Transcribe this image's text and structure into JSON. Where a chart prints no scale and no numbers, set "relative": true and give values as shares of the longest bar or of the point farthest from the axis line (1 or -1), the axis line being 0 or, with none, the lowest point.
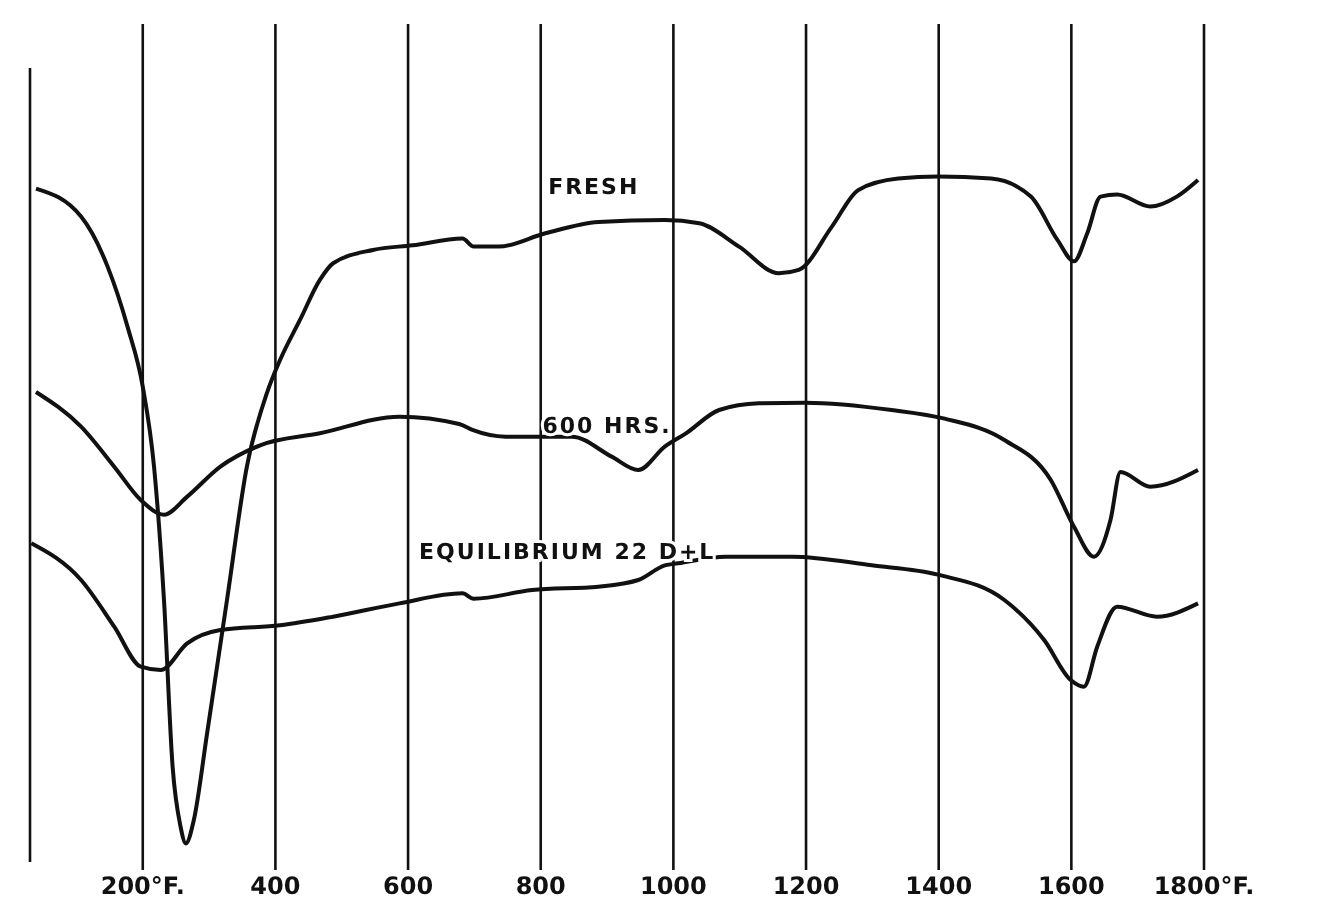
{
  "chart_data": {
    "type": "line",
    "relative": true,
    "grid": "x",
    "tick_labels": "x",
    "marker": "none",
    "line_style": "solid",
    "xlim": [
      30,
      1800
    ],
    "xticks": [
      {
        "value": 200,
        "label": "200°F."
      },
      400,
      600,
      800,
      1000,
      1200,
      1400,
      1600,
      {
        "value": 1800,
        "label": "1800°F."
      }
    ],
    "series": [
      {
        "name": "FRESH",
        "color": "#111111",
        "x": [
          39,
          107,
          147,
          177,
          200,
          217,
          232,
          245,
          257,
          265,
          277,
          297,
          327,
          357,
          387,
          407,
          437,
          467,
          487,
          547,
          607,
          682,
          699,
          737,
          807,
          887,
          987,
          1039,
          1099,
          1159,
          1189,
          1239,
          1279,
          1339,
          1399,
          1479,
          1539,
          1579,
          1604,
          1624,
          1644,
          1669,
          1719,
          1759,
          1791
        ],
        "values": [
          0.982,
          0.94,
          0.865,
          0.775,
          0.685,
          0.565,
          0.365,
          0.115,
          0.025,
          0,
          0.035,
          0.165,
          0.365,
          0.565,
          0.675,
          0.725,
          0.785,
          0.845,
          0.87,
          0.89,
          0.897,
          0.907,
          0.895,
          0.895,
          0.915,
          0.932,
          0.935,
          0.93,
          0.895,
          0.855,
          0.86,
          0.925,
          0.98,
          0.997,
          1,
          0.997,
          0.97,
          0.905,
          0.873,
          0.915,
          0.97,
          0.973,
          0.955,
          0.97,
          0.995
        ]
      },
      {
        "name": "600 HRS.",
        "color": "#111111",
        "x": [
          39,
          107,
          157,
          197,
          232,
          267,
          317,
          377,
          467,
          587,
          677,
          697,
          747,
          847,
          907,
          947,
          987,
          1019,
          1069,
          1129,
          1199,
          1329,
          1409,
          1499,
          1569,
          1604,
          1634,
          1659,
          1674,
          1719,
          1791
        ],
        "values": [
          0.677,
          0.625,
          0.565,
          0.515,
          0.493,
          0.52,
          0.565,
          0.597,
          0.615,
          0.64,
          0.629,
          0.62,
          0.61,
          0.61,
          0.58,
          0.56,
          0.595,
          0.615,
          0.65,
          0.66,
          0.661,
          0.65,
          0.637,
          0.605,
          0.545,
          0.475,
          0.43,
          0.485,
          0.557,
          0.535,
          0.56
        ]
      },
      {
        "name": "EQUILIBRIUM  22 D+L",
        "color": "#111111",
        "x": [
          32,
          107,
          157,
          197,
          227,
          267,
          317,
          407,
          487,
          587,
          682,
          699,
          787,
          887,
          947,
          987,
          1007,
          1079,
          1179,
          1299,
          1399,
          1499,
          1559,
          1599,
          1619,
          1639,
          1669,
          1729,
          1791
        ],
        "values": [
          0.45,
          0.395,
          0.325,
          0.265,
          0.26,
          0.3,
          0.32,
          0.327,
          0.34,
          0.36,
          0.375,
          0.367,
          0.38,
          0.385,
          0.395,
          0.417,
          0.42,
          0.43,
          0.43,
          0.417,
          0.403,
          0.365,
          0.305,
          0.245,
          0.235,
          0.295,
          0.355,
          0.34,
          0.36
        ]
      }
    ]
  }
}
